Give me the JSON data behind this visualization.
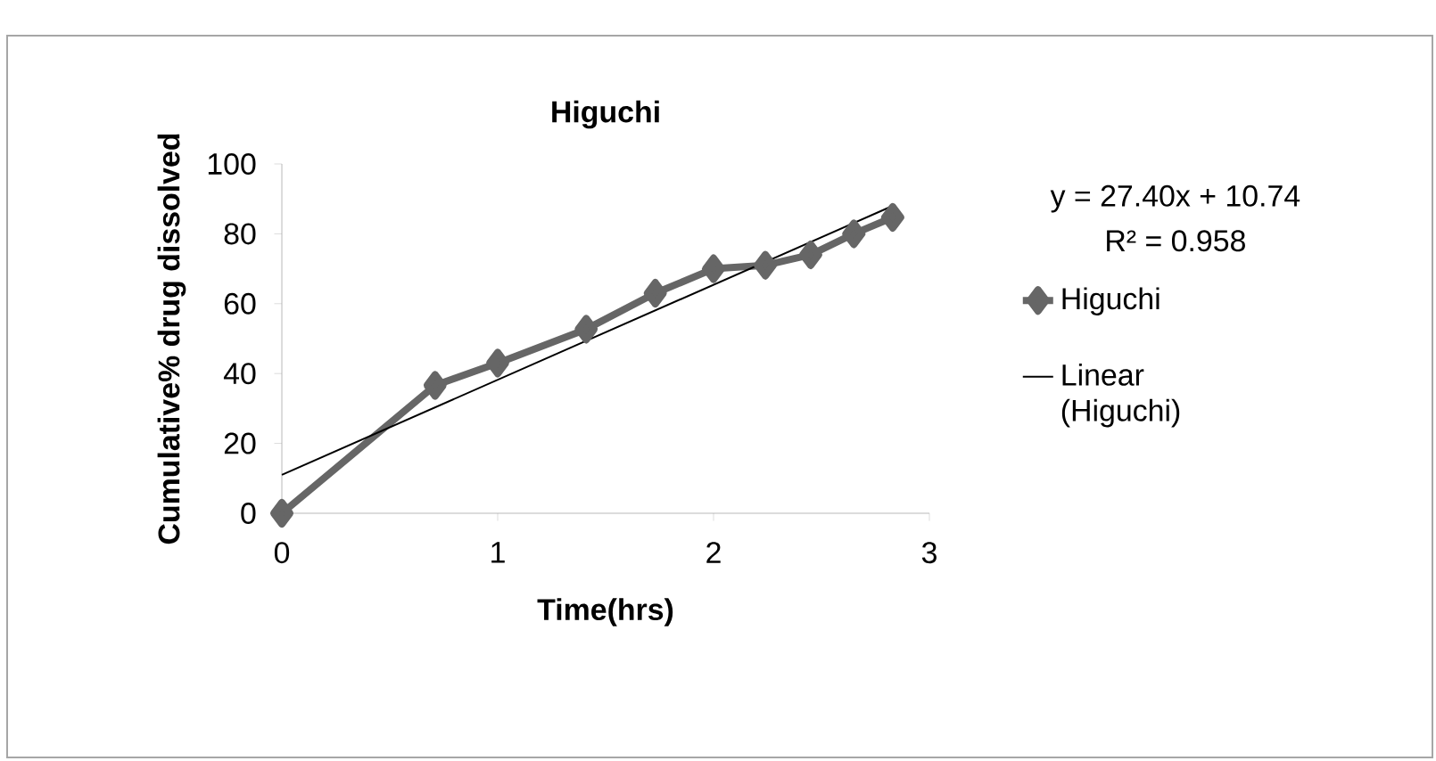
{
  "chart_data": {
    "type": "line",
    "title": "Higuchi",
    "xlabel": "Time(hrs)",
    "ylabel": "Cumulative% drug dissolved",
    "xlim": [
      0,
      3
    ],
    "xticks": [
      0,
      1,
      2,
      3
    ],
    "ylim": [
      0,
      100
    ],
    "yticks": [
      0,
      20,
      40,
      60,
      80,
      100
    ],
    "grid": false,
    "legend": "right",
    "annotations": [
      "y = 27.40x + 10.74",
      "R² = 0.958"
    ],
    "series": [
      {
        "name": "Higuchi",
        "type": "line",
        "color": "#666666",
        "marker": "diamond",
        "x": [
          0,
          0.71,
          1.0,
          1.41,
          1.73,
          2.0,
          2.24,
          2.45,
          2.65,
          2.83
        ],
        "values": [
          0,
          36.6,
          43,
          52.7,
          63,
          70,
          71,
          74,
          80,
          84.7
        ]
      },
      {
        "name": "Linear (Higuchi)",
        "type": "line",
        "color": "#000000",
        "marker": "none",
        "x": [
          0,
          2.83
        ],
        "values": [
          11,
          88
        ]
      }
    ]
  }
}
